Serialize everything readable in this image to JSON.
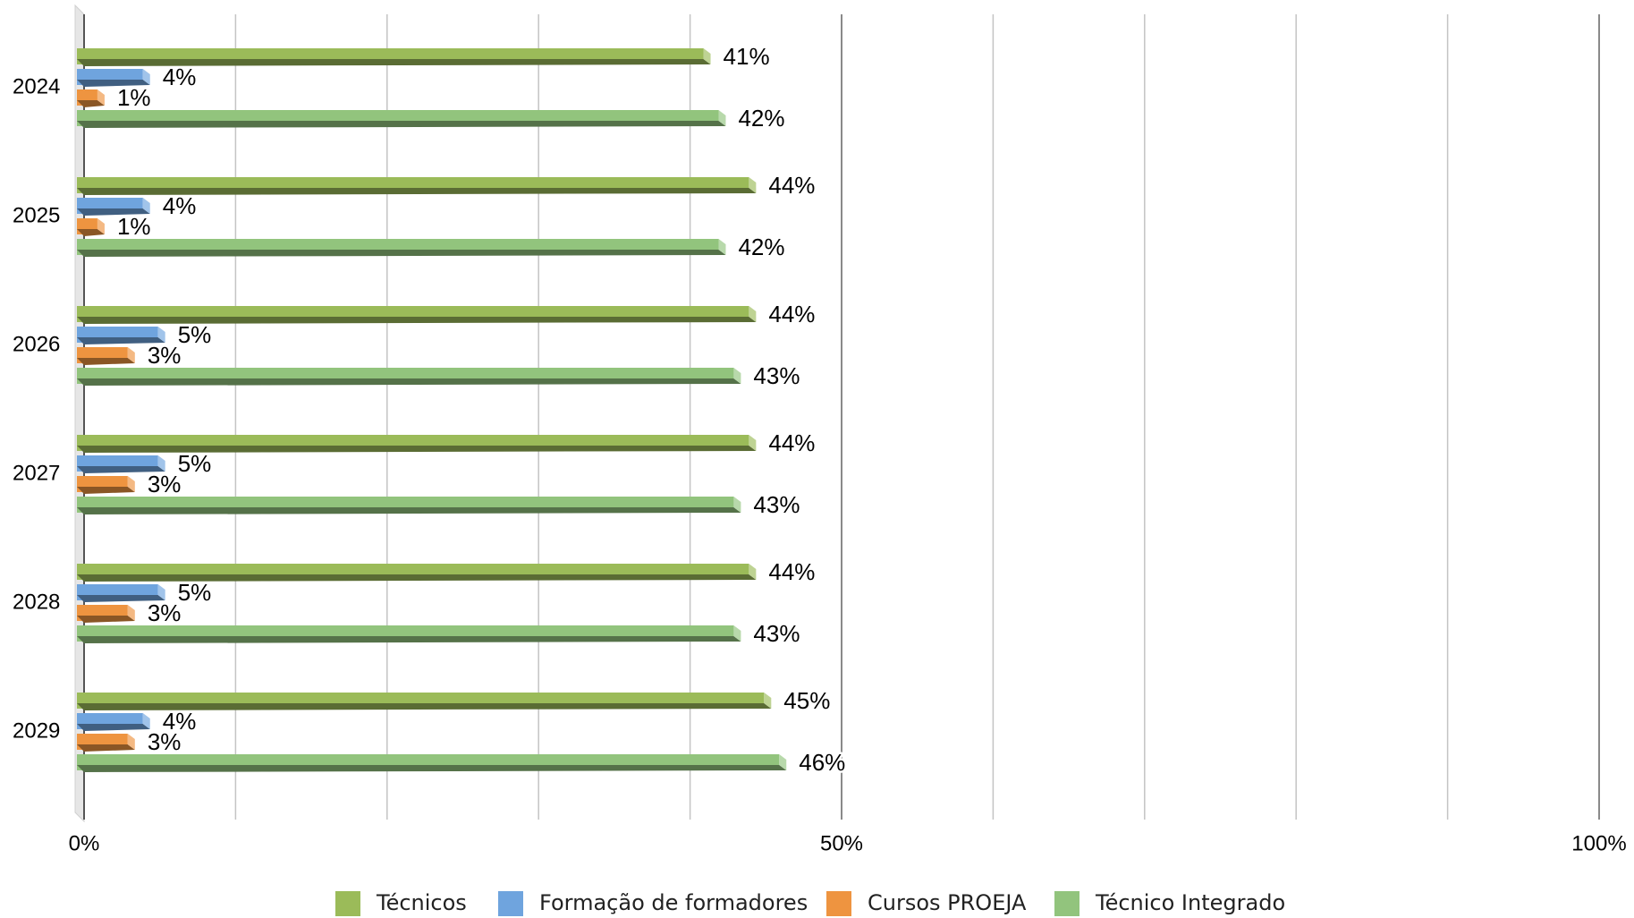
{
  "chart_data": {
    "type": "bar",
    "orientation": "horizontal",
    "style": "3d",
    "title": "",
    "xlabel": "",
    "ylabel": "",
    "categories": [
      "2024",
      "2025",
      "2026",
      "2027",
      "2028",
      "2029"
    ],
    "series": [
      {
        "name": "Técnicos",
        "color": "#9BBB59",
        "values": [
          41,
          44,
          44,
          44,
          44,
          45
        ]
      },
      {
        "name": "Formação de formadores",
        "color": "#6FA4DE",
        "values": [
          4,
          4,
          5,
          5,
          5,
          4
        ]
      },
      {
        "name": "Cursos PROEJA",
        "color": "#EE9440",
        "values": [
          1,
          1,
          3,
          3,
          3,
          3
        ]
      },
      {
        "name": "Técnico Integrado",
        "color": "#92C47D",
        "values": [
          42,
          42,
          43,
          43,
          43,
          46
        ]
      }
    ],
    "xlim": [
      0,
      100
    ],
    "tick_values": [
      0,
      50,
      100
    ],
    "tick_labels": [
      "0%",
      "50%",
      "100%"
    ],
    "gridline_step": 10,
    "grid": true,
    "legend_position": "bottom",
    "value_suffix": "%"
  }
}
